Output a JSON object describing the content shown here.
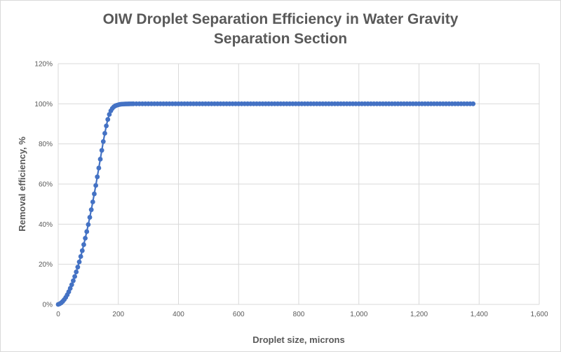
{
  "chart_data": {
    "type": "line",
    "title_line1": "OIW Droplet Separation Efficiency in Water Gravity",
    "title_line2": "Separation Section",
    "xlabel": "Droplet size, microns",
    "ylabel": "Removal efficiency, %",
    "xlim": [
      0,
      1600
    ],
    "ylim": [
      0,
      120
    ],
    "grid": true,
    "xticks": [
      0,
      200,
      400,
      600,
      800,
      1000,
      1200,
      1400,
      1600
    ],
    "xtick_labels": [
      "0",
      "200",
      "400",
      "600",
      "800",
      "1,000",
      "1,200",
      "1,400",
      "1,600"
    ],
    "yticks": [
      0,
      20,
      40,
      60,
      80,
      100,
      120
    ],
    "ytick_labels": [
      "0%",
      "20%",
      "40%",
      "60%",
      "80%",
      "100%",
      "120%"
    ],
    "series_color": "#4472c4",
    "series": [
      {
        "name": "Removal efficiency",
        "x": [
          0,
          5,
          10,
          15,
          20,
          25,
          30,
          35,
          40,
          45,
          50,
          55,
          60,
          65,
          70,
          75,
          80,
          85,
          90,
          95,
          100,
          105,
          110,
          115,
          120,
          125,
          130,
          135,
          140,
          145,
          150,
          155,
          160,
          165,
          170,
          175,
          180,
          185,
          190,
          195,
          200,
          205,
          210,
          215,
          220,
          225,
          230,
          235,
          240,
          245,
          250,
          260,
          270,
          280,
          290,
          300,
          310,
          320,
          330,
          340,
          350,
          360,
          370,
          380,
          390,
          400,
          410,
          420,
          430,
          440,
          450,
          460,
          470,
          480,
          490,
          500,
          510,
          520,
          530,
          540,
          550,
          560,
          570,
          580,
          590,
          600,
          610,
          620,
          630,
          640,
          650,
          660,
          670,
          680,
          690,
          700,
          710,
          720,
          730,
          740,
          750,
          760,
          770,
          780,
          790,
          800,
          810,
          820,
          830,
          840,
          850,
          860,
          870,
          880,
          890,
          900,
          910,
          920,
          930,
          940,
          950,
          960,
          970,
          980,
          990,
          1000,
          1010,
          1020,
          1030,
          1040,
          1050,
          1060,
          1070,
          1080,
          1090,
          1100,
          1110,
          1120,
          1130,
          1140,
          1150,
          1160,
          1170,
          1180,
          1190,
          1200,
          1210,
          1220,
          1230,
          1240,
          1250,
          1260,
          1270,
          1280,
          1290,
          1300,
          1310,
          1320,
          1330,
          1340,
          1350,
          1360,
          1370,
          1380
        ],
        "y": [
          0,
          0.3,
          0.8,
          1.5,
          2.4,
          3.5,
          4.8,
          6.3,
          8,
          9.8,
          11.8,
          13.9,
          16.2,
          18.6,
          21.2,
          23.9,
          26.8,
          29.8,
          33,
          36.3,
          39.8,
          43.4,
          47.2,
          51.1,
          55.1,
          59.3,
          63.6,
          68,
          72.4,
          76.8,
          81.2,
          85.3,
          89,
          92.2,
          94.7,
          96.5,
          97.7,
          98.5,
          99,
          99.3,
          99.5,
          99.7,
          99.8,
          99.85,
          99.9,
          99.93,
          99.95,
          99.97,
          99.98,
          99.99,
          100,
          100,
          100,
          100,
          100,
          100,
          100,
          100,
          100,
          100,
          100,
          100,
          100,
          100,
          100,
          100,
          100,
          100,
          100,
          100,
          100,
          100,
          100,
          100,
          100,
          100,
          100,
          100,
          100,
          100,
          100,
          100,
          100,
          100,
          100,
          100,
          100,
          100,
          100,
          100,
          100,
          100,
          100,
          100,
          100,
          100,
          100,
          100,
          100,
          100,
          100,
          100,
          100,
          100,
          100,
          100,
          100,
          100,
          100,
          100,
          100,
          100,
          100,
          100,
          100,
          100,
          100,
          100,
          100,
          100,
          100,
          100,
          100,
          100,
          100,
          100,
          100,
          100,
          100,
          100,
          100,
          100,
          100,
          100,
          100,
          100,
          100,
          100,
          100,
          100,
          100,
          100,
          100,
          100,
          100,
          100,
          100,
          100,
          100,
          100,
          100,
          100,
          100,
          100,
          100,
          100,
          100,
          100,
          100,
          100,
          100,
          100,
          100,
          100
        ]
      }
    ]
  }
}
